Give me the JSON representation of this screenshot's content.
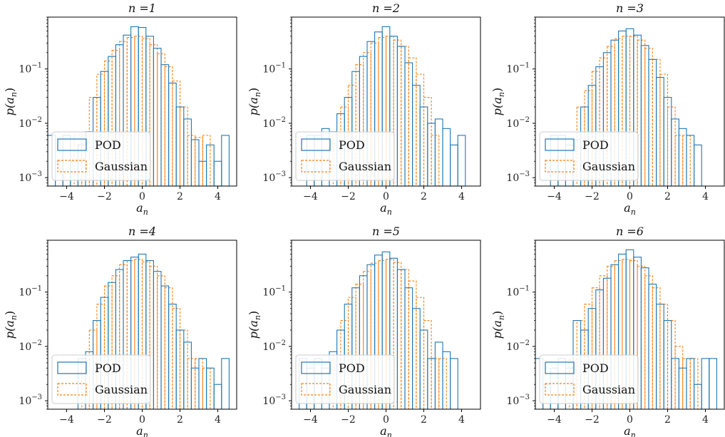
{
  "chart_data": [
    {
      "type": "histogram",
      "title": "n =1",
      "xlabel": "a_n",
      "ylabel": "p(a_n)",
      "xscale": "linear",
      "yscale": "log",
      "xlim": [
        -5,
        5
      ],
      "ylim": [
        0.0007,
        0.9
      ],
      "xticks": [
        -4,
        -2,
        0,
        2,
        4
      ],
      "yticks": [
        0.001,
        0.01,
        0.1
      ],
      "ytick_labels": [
        "10^-3",
        "10^-2",
        "10^-1"
      ],
      "legend": {
        "location": "lower-left",
        "entries": [
          "POD",
          "Gaussian"
        ]
      },
      "series": [
        {
          "name": "POD",
          "color": "#1f77b4",
          "style": "solid",
          "x": [
            -4.8,
            -4.4,
            -4.0,
            -3.6,
            -3.2,
            -2.8,
            -2.4,
            -2.0,
            -1.6,
            -1.2,
            -0.8,
            -0.4,
            0.0,
            0.4,
            0.8,
            1.2,
            1.6,
            2.0,
            2.4,
            2.8,
            3.2,
            3.6,
            4.0,
            4.4
          ],
          "y": [
            0.006,
            0.002,
            0.006,
            0.002,
            0.004,
            0.007,
            0.03,
            0.09,
            0.17,
            0.28,
            0.42,
            0.6,
            0.58,
            0.4,
            0.24,
            0.12,
            0.055,
            0.02,
            0.012,
            0.005,
            0.002,
            0.004,
            0.002,
            0.006
          ]
        },
        {
          "name": "Gaussian",
          "color": "#ff7f0e",
          "style": "dashed",
          "x": [
            -3.4,
            -3.0,
            -2.6,
            -2.2,
            -1.8,
            -1.4,
            -1.0,
            -0.6,
            -0.2,
            0.2,
            0.6,
            1.0,
            1.4,
            1.8,
            2.2,
            2.6,
            3.0,
            3.4
          ],
          "y": [
            0.006,
            0.006,
            0.03,
            0.08,
            0.14,
            0.22,
            0.32,
            0.38,
            0.4,
            0.36,
            0.28,
            0.19,
            0.11,
            0.06,
            0.02,
            0.006,
            0.0055,
            0.006
          ]
        }
      ]
    },
    {
      "type": "histogram",
      "title": "n =2",
      "xlabel": "a_n",
      "ylabel": "p(a_n)",
      "xscale": "linear",
      "yscale": "log",
      "xlim": [
        -5,
        5
      ],
      "ylim": [
        0.0007,
        0.9
      ],
      "xticks": [
        -4,
        -2,
        0,
        2,
        4
      ],
      "yticks": [
        0.001,
        0.01,
        0.1
      ],
      "ytick_labels": [
        "10^-3",
        "10^-2",
        "10^-1"
      ],
      "legend": {
        "location": "lower-left",
        "entries": [
          "POD",
          "Gaussian"
        ]
      },
      "series": [
        {
          "name": "POD",
          "color": "#1f77b4",
          "style": "solid",
          "x": [
            -4.0,
            -3.6,
            -3.2,
            -2.8,
            -2.4,
            -2.0,
            -1.6,
            -1.2,
            -0.8,
            -0.4,
            0.0,
            0.4,
            0.8,
            1.2,
            1.6,
            2.0,
            2.4,
            2.8,
            3.2,
            3.6,
            4.0
          ],
          "y": [
            0.006,
            0.006,
            0.008,
            0.007,
            0.015,
            0.03,
            0.09,
            0.17,
            0.32,
            0.48,
            0.6,
            0.4,
            0.26,
            0.13,
            0.05,
            0.02,
            0.01,
            0.012,
            0.008,
            0.004,
            0.006
          ]
        },
        {
          "name": "Gaussian",
          "color": "#ff7f0e",
          "style": "dashed",
          "x": [
            -2.6,
            -2.2,
            -1.8,
            -1.4,
            -1.0,
            -0.6,
            -0.2,
            0.2,
            0.6,
            1.0,
            1.4,
            1.8,
            2.2,
            2.6
          ],
          "y": [
            0.006,
            0.02,
            0.05,
            0.12,
            0.2,
            0.3,
            0.38,
            0.4,
            0.34,
            0.26,
            0.16,
            0.08,
            0.03,
            0.006
          ]
        }
      ]
    },
    {
      "type": "histogram",
      "title": "n =3",
      "xlabel": "a_n",
      "ylabel": "p(a_n)",
      "xscale": "linear",
      "yscale": "log",
      "xlim": [
        -5,
        5
      ],
      "ylim": [
        0.0007,
        0.9
      ],
      "xticks": [
        -4,
        -2,
        0,
        2,
        4
      ],
      "yticks": [
        0.001,
        0.01,
        0.1
      ],
      "ytick_labels": [
        "10^-3",
        "10^-2",
        "10^-1"
      ],
      "legend": {
        "location": "lower-left",
        "entries": [
          "POD",
          "Gaussian"
        ]
      },
      "series": [
        {
          "name": "POD",
          "color": "#1f77b4",
          "style": "solid",
          "x": [
            -4.0,
            -3.6,
            -3.2,
            -2.8,
            -2.4,
            -2.0,
            -1.6,
            -1.2,
            -0.8,
            -0.4,
            0.0,
            0.4,
            0.8,
            1.2,
            1.6,
            2.0,
            2.4,
            2.8,
            3.2,
            3.6
          ],
          "y": [
            0.006,
            0.006,
            0.004,
            0.005,
            0.02,
            0.05,
            0.11,
            0.2,
            0.34,
            0.5,
            0.55,
            0.42,
            0.27,
            0.15,
            0.07,
            0.03,
            0.012,
            0.008,
            0.006,
            0.004
          ]
        },
        {
          "name": "Gaussian",
          "color": "#ff7f0e",
          "style": "dashed",
          "x": [
            -2.6,
            -2.2,
            -1.8,
            -1.4,
            -1.0,
            -0.6,
            -0.2,
            0.2,
            0.6,
            1.0,
            1.4,
            1.8,
            2.2,
            2.6,
            3.0
          ],
          "y": [
            0.02,
            0.04,
            0.09,
            0.16,
            0.26,
            0.36,
            0.4,
            0.4,
            0.34,
            0.24,
            0.15,
            0.08,
            0.02,
            0.006,
            0.006
          ]
        }
      ]
    },
    {
      "type": "histogram",
      "title": "n =4",
      "xlabel": "a_n",
      "ylabel": "p(a_n)",
      "xscale": "linear",
      "yscale": "log",
      "xlim": [
        -5,
        5
      ],
      "ylim": [
        0.0007,
        0.9
      ],
      "xticks": [
        -4,
        -2,
        0,
        2,
        4
      ],
      "yticks": [
        0.001,
        0.01,
        0.1
      ],
      "ytick_labels": [
        "10^-3",
        "10^-2",
        "10^-1"
      ],
      "legend": {
        "location": "lower-left",
        "entries": [
          "POD",
          "Gaussian"
        ]
      },
      "series": [
        {
          "name": "POD",
          "color": "#1f77b4",
          "style": "solid",
          "x": [
            -3.2,
            -2.8,
            -2.4,
            -2.0,
            -1.6,
            -1.2,
            -0.8,
            -0.4,
            0.0,
            0.4,
            0.8,
            1.2,
            1.6,
            2.0,
            2.4,
            2.8,
            3.2,
            3.6,
            4.0,
            4.4
          ],
          "y": [
            0.006,
            0.008,
            0.03,
            0.08,
            0.15,
            0.26,
            0.38,
            0.44,
            0.5,
            0.38,
            0.24,
            0.13,
            0.06,
            0.02,
            0.012,
            0.004,
            0.006,
            0.004,
            0.002,
            0.006
          ]
        },
        {
          "name": "Gaussian",
          "color": "#ff7f0e",
          "style": "dashed",
          "x": [
            -3.0,
            -2.6,
            -2.2,
            -1.8,
            -1.4,
            -1.0,
            -0.6,
            -0.2,
            0.2,
            0.6,
            1.0,
            1.4,
            1.8,
            2.2,
            2.6,
            3.0,
            3.4
          ],
          "y": [
            0.006,
            0.02,
            0.06,
            0.13,
            0.2,
            0.32,
            0.38,
            0.4,
            0.36,
            0.3,
            0.2,
            0.12,
            0.05,
            0.02,
            0.006,
            0.006,
            0.004
          ]
        }
      ]
    },
    {
      "type": "histogram",
      "title": "n =5",
      "xlabel": "a_n",
      "ylabel": "p(a_n)",
      "xscale": "linear",
      "yscale": "log",
      "xlim": [
        -5,
        5
      ],
      "ylim": [
        0.0007,
        0.9
      ],
      "xticks": [
        -4,
        -2,
        0,
        2,
        4
      ],
      "yticks": [
        0.001,
        0.01,
        0.1
      ],
      "ytick_labels": [
        "10^-3",
        "10^-2",
        "10^-1"
      ],
      "legend": {
        "location": "lower-left",
        "entries": [
          "POD",
          "Gaussian"
        ]
      },
      "series": [
        {
          "name": "POD",
          "color": "#1f77b4",
          "style": "solid",
          "x": [
            -4.4,
            -4.0,
            -3.6,
            -3.2,
            -2.8,
            -2.4,
            -2.0,
            -1.6,
            -1.2,
            -0.8,
            -0.4,
            0.0,
            0.4,
            0.8,
            1.2,
            1.6,
            2.0,
            2.4,
            2.8,
            3.2,
            3.6
          ],
          "y": [
            0.006,
            0.004,
            0.006,
            0.004,
            0.008,
            0.02,
            0.06,
            0.12,
            0.2,
            0.32,
            0.48,
            0.55,
            0.42,
            0.26,
            0.12,
            0.05,
            0.02,
            0.006,
            0.012,
            0.008,
            0.006
          ]
        },
        {
          "name": "Gaussian",
          "color": "#ff7f0e",
          "style": "dashed",
          "x": [
            -2.6,
            -2.2,
            -1.8,
            -1.4,
            -1.0,
            -0.6,
            -0.2,
            0.2,
            0.6,
            1.0,
            1.4,
            1.8,
            2.2,
            2.6,
            3.0
          ],
          "y": [
            0.006,
            0.03,
            0.08,
            0.14,
            0.24,
            0.34,
            0.38,
            0.4,
            0.35,
            0.26,
            0.16,
            0.08,
            0.03,
            0.006,
            0.006
          ]
        }
      ]
    },
    {
      "type": "histogram",
      "title": "n =6",
      "xlabel": "a_n",
      "ylabel": "p(a_n)",
      "xscale": "linear",
      "yscale": "log",
      "xlim": [
        -5,
        5
      ],
      "ylim": [
        0.0007,
        0.9
      ],
      "xticks": [
        -4,
        -2,
        0,
        2,
        4
      ],
      "yticks": [
        0.001,
        0.01,
        0.1
      ],
      "ytick_labels": [
        "10^-3",
        "10^-2",
        "10^-1"
      ],
      "legend": {
        "location": "lower-left",
        "entries": [
          "POD",
          "Gaussian"
        ]
      },
      "series": [
        {
          "name": "POD",
          "color": "#1f77b4",
          "style": "solid",
          "x": [
            -4.8,
            -4.4,
            -4.0,
            -3.6,
            -3.2,
            -2.8,
            -2.4,
            -2.0,
            -1.6,
            -1.2,
            -0.8,
            -0.4,
            0.0,
            0.4,
            0.8,
            1.2,
            1.6,
            2.0,
            2.4,
            2.8,
            3.2,
            3.6,
            4.0,
            4.4
          ],
          "y": [
            0.006,
            0.002,
            0.004,
            0.006,
            0.004,
            0.03,
            0.02,
            0.05,
            0.11,
            0.18,
            0.32,
            0.5,
            0.6,
            0.44,
            0.28,
            0.14,
            0.06,
            0.03,
            0.006,
            0.004,
            0.006,
            0.002,
            0.006,
            0.006
          ]
        },
        {
          "name": "Gaussian",
          "color": "#ff7f0e",
          "style": "dashed",
          "x": [
            -3.0,
            -2.6,
            -2.2,
            -1.8,
            -1.4,
            -1.0,
            -0.6,
            -0.2,
            0.2,
            0.6,
            1.0,
            1.4,
            1.8,
            2.2,
            2.6,
            3.0,
            3.4
          ],
          "y": [
            0.006,
            0.03,
            0.06,
            0.12,
            0.2,
            0.3,
            0.38,
            0.4,
            0.38,
            0.3,
            0.2,
            0.12,
            0.06,
            0.03,
            0.01,
            0.006,
            0.006
          ]
        }
      ]
    }
  ]
}
